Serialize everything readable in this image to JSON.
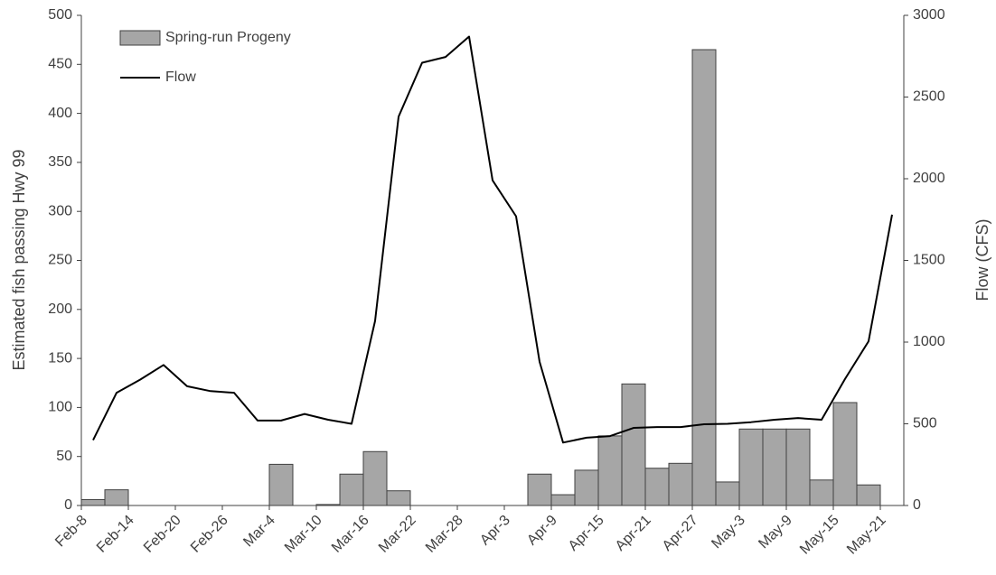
{
  "chart_data": {
    "type": "bar-line",
    "y_label": "Estimated fish passing Hwy 99",
    "y2_label": "Flow (CFS)",
    "categories": [
      "Feb-8",
      null,
      "Feb-14",
      null,
      "Feb-20",
      null,
      "Feb-26",
      null,
      "Mar-4",
      null,
      "Mar-10",
      null,
      "Mar-16",
      null,
      "Mar-22",
      null,
      "Mar-28",
      null,
      "Apr-3",
      null,
      "Apr-9",
      null,
      "Apr-15",
      null,
      "Apr-21",
      null,
      "Apr-27",
      null,
      "May-3",
      null,
      "May-9",
      null,
      "May-15",
      null,
      "May-21"
    ],
    "series": [
      {
        "name": "Spring-run Progeny",
        "type": "bar",
        "color": "#a6a6a6",
        "axis": "y",
        "values": [
          6,
          16,
          0,
          0,
          0,
          0,
          0,
          0,
          42,
          0,
          1,
          32,
          55,
          15,
          0,
          0,
          0,
          0,
          0,
          32,
          11,
          36,
          71,
          124,
          38,
          43,
          465,
          24,
          78,
          78,
          78,
          26,
          105,
          21,
          0
        ]
      },
      {
        "name": "Flow",
        "type": "line",
        "color": "#000000",
        "axis": "y2",
        "values": [
          400,
          690,
          770,
          860,
          730,
          700,
          690,
          520,
          520,
          560,
          525,
          500,
          1130,
          2380,
          2710,
          2745,
          2870,
          1990,
          1770,
          880,
          385,
          415,
          425,
          475,
          480,
          480,
          497,
          500,
          510,
          525,
          535,
          525,
          775,
          1005,
          1780
        ]
      }
    ],
    "ylim": [
      0,
      500
    ],
    "yticks": [
      0,
      50,
      100,
      150,
      200,
      250,
      300,
      350,
      400,
      450,
      500
    ],
    "y2lim": [
      0,
      3000
    ],
    "y2ticks": [
      0,
      500,
      1000,
      1500,
      2000,
      2500,
      3000
    ],
    "legend": "top-left",
    "grid": false
  }
}
